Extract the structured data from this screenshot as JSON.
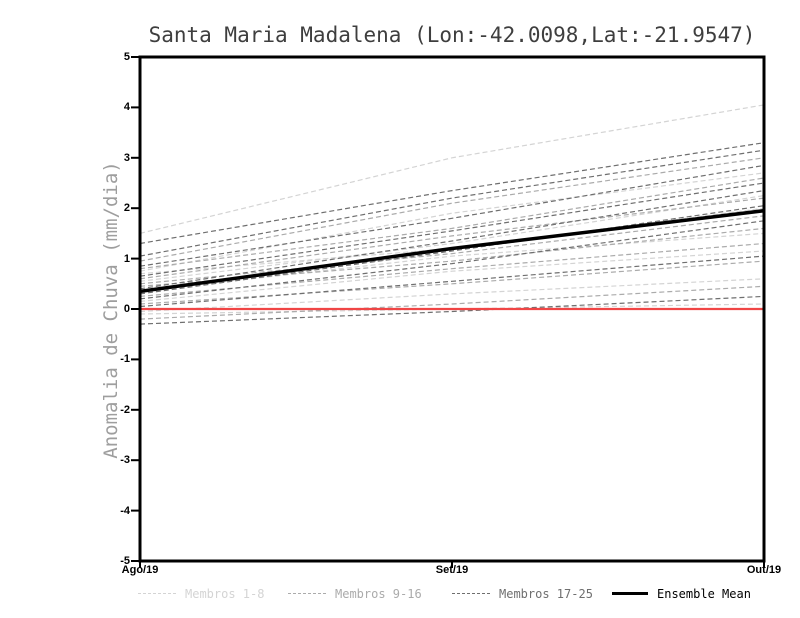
{
  "chart_data": {
    "type": "line",
    "title": "Santa Maria Madalena (Lon:-42.0098,Lat:-21.9547)",
    "ylabel": "Anomalia de Chuva (mm/dia)",
    "xlabel": "",
    "x_categories": [
      "Ago/19",
      "Set/19",
      "Out/19"
    ],
    "ylim": [
      -5,
      5
    ],
    "y_ticks": [
      5,
      4,
      3,
      2,
      1,
      0,
      -1,
      -2,
      -3,
      -4,
      -5
    ],
    "grid": false,
    "legend_position": "bottom",
    "frame_color": "#000000",
    "zero_line": {
      "y": 0,
      "color": "#f04545"
    },
    "ensemble_mean": {
      "name": "Ensemble Mean",
      "color": "#000000",
      "values": [
        0.35,
        1.2,
        1.95
      ]
    },
    "groups": [
      {
        "name": "Membros 1-8",
        "color": "#d4d4d4"
      },
      {
        "name": "Membros 9-16",
        "color": "#ababab"
      },
      {
        "name": "Membros 17-25",
        "color": "#6f6f6f"
      }
    ],
    "members": [
      {
        "group": 0,
        "values": [
          1.5,
          3.0,
          4.05
        ]
      },
      {
        "group": 0,
        "values": [
          0.75,
          1.9,
          2.7
        ]
      },
      {
        "group": 0,
        "values": [
          0.55,
          1.3,
          2.25
        ]
      },
      {
        "group": 0,
        "values": [
          0.7,
          1.2,
          2.0
        ]
      },
      {
        "group": 0,
        "values": [
          0.35,
          1.05,
          1.5
        ]
      },
      {
        "group": 0,
        "values": [
          0.15,
          0.75,
          1.15
        ]
      },
      {
        "group": 0,
        "values": [
          -0.05,
          0.3,
          0.6
        ]
      },
      {
        "group": 0,
        "values": [
          -0.1,
          0.0,
          0.1
        ]
      },
      {
        "group": 1,
        "values": [
          0.95,
          2.1,
          3.0
        ]
      },
      {
        "group": 1,
        "values": [
          0.8,
          1.6,
          2.6
        ]
      },
      {
        "group": 1,
        "values": [
          0.6,
          1.45,
          2.2
        ]
      },
      {
        "group": 1,
        "values": [
          0.5,
          1.1,
          1.85
        ]
      },
      {
        "group": 1,
        "values": [
          0.45,
          0.95,
          1.6
        ]
      },
      {
        "group": 1,
        "values": [
          0.25,
          0.8,
          1.3
        ]
      },
      {
        "group": 1,
        "values": [
          0.1,
          0.5,
          0.95
        ]
      },
      {
        "group": 1,
        "values": [
          -0.2,
          0.1,
          0.45
        ]
      },
      {
        "group": 2,
        "values": [
          1.3,
          2.35,
          3.3
        ]
      },
      {
        "group": 2,
        "values": [
          1.05,
          2.2,
          3.15
        ]
      },
      {
        "group": 2,
        "values": [
          0.85,
          1.8,
          2.85
        ]
      },
      {
        "group": 2,
        "values": [
          0.65,
          1.55,
          2.5
        ]
      },
      {
        "group": 2,
        "values": [
          0.4,
          1.35,
          2.35
        ]
      },
      {
        "group": 2,
        "values": [
          0.3,
          1.15,
          2.05
        ]
      },
      {
        "group": 2,
        "values": [
          0.2,
          0.9,
          1.75
        ]
      },
      {
        "group": 2,
        "values": [
          0.05,
          0.55,
          1.05
        ]
      },
      {
        "group": 2,
        "values": [
          -0.3,
          -0.05,
          0.25
        ]
      }
    ],
    "legend": {
      "items": [
        {
          "label": "Membros 1-8",
          "color": "#d4d4d4",
          "style": "dashed"
        },
        {
          "label": "Membros 9-16",
          "color": "#ababab",
          "style": "dashed"
        },
        {
          "label": "Membros 17-25",
          "color": "#6f6f6f",
          "style": "dashed"
        },
        {
          "label": "Ensemble Mean",
          "color": "#000000",
          "style": "solid"
        }
      ]
    }
  }
}
